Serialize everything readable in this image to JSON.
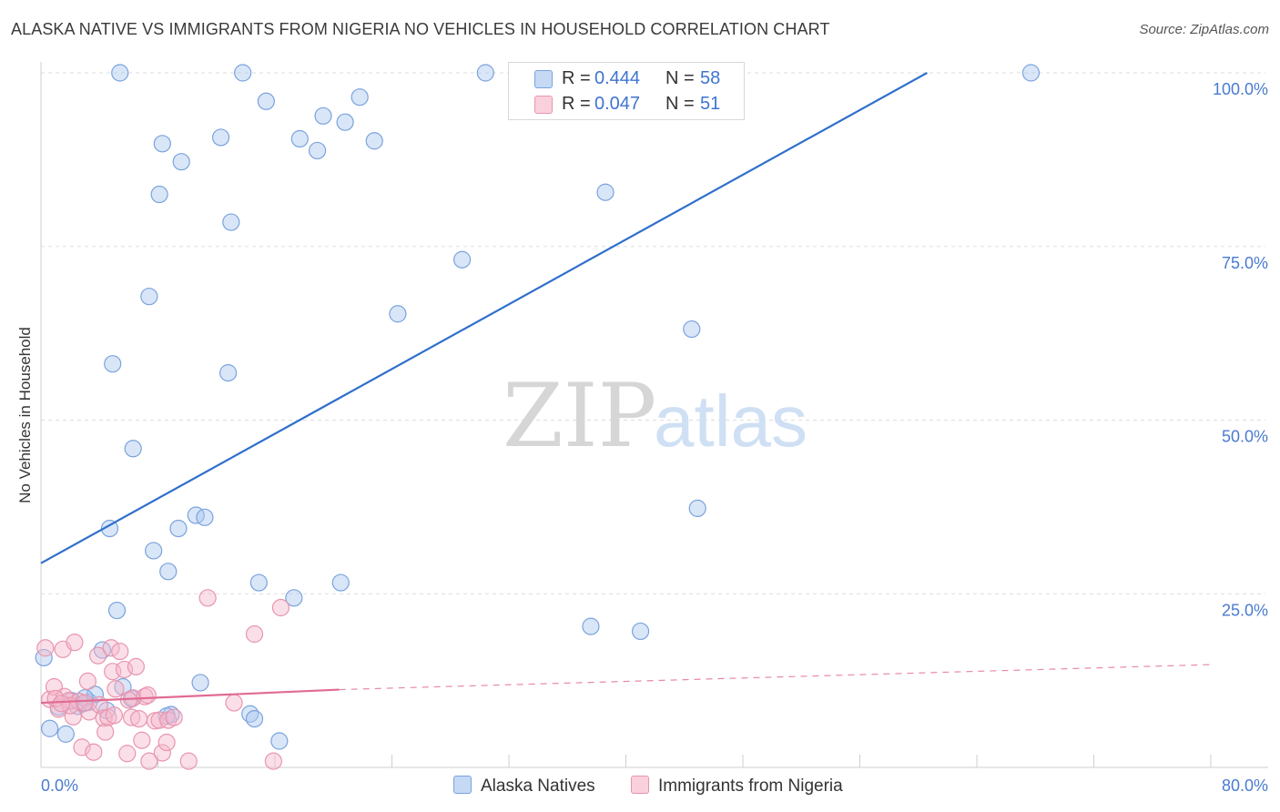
{
  "title": "ALASKA NATIVE VS IMMIGRANTS FROM NIGERIA NO VEHICLES IN HOUSEHOLD CORRELATION CHART",
  "source": "Source: ZipAtlas.com",
  "watermark": {
    "zip": "ZIP",
    "atlas": "atlas"
  },
  "legend": [
    {
      "name": "Alaska Natives",
      "r_label": "R =",
      "r": "0.444",
      "n_label": "N =",
      "n": "58",
      "color": "#aac8f0",
      "edge": "#7aa3dd"
    },
    {
      "name": "Immigrants from Nigeria",
      "r_label": "R =",
      "r": "0.047",
      "n_label": "N =",
      "n": "51",
      "color": "#f7b9cc",
      "edge": "#e895ae"
    }
  ],
  "chart_data": {
    "type": "scatter",
    "title": "ALASKA NATIVE VS IMMIGRANTS FROM NIGERIA NO VEHICLES IN HOUSEHOLD CORRELATION CHART",
    "xlabel": "",
    "ylabel": "No Vehicles in Household",
    "xlim": [
      0,
      80
    ],
    "ylim": [
      0,
      100
    ],
    "x_tick_labels": [
      "0.0%",
      "80.0%"
    ],
    "y_ticks": [
      100,
      75,
      50,
      25
    ],
    "y_tick_labels": [
      "100.0%",
      "75.0%",
      "50.0%",
      "25.0%"
    ],
    "grid": true,
    "legend_position": "top-center",
    "series": [
      {
        "name": "Alaska Natives",
        "color": "#aac8f0",
        "edge": "#7aa3dd",
        "trend": {
          "x": [
            0,
            60.6
          ],
          "y": [
            29.4,
            100
          ],
          "color": "#2f6fcc",
          "dashed_to": null
        },
        "points": [
          [
            0.2,
            15.8
          ],
          [
            0.6,
            5.6
          ],
          [
            1.7,
            4.8
          ],
          [
            2.5,
            8.8
          ],
          [
            2.9,
            9.2
          ],
          [
            3.3,
            9.4
          ],
          [
            3.7,
            10.5
          ],
          [
            4.2,
            16.9
          ],
          [
            4.7,
            34.4
          ],
          [
            4.9,
            58.1
          ],
          [
            5.2,
            22.6
          ],
          [
            5.6,
            11.6
          ],
          [
            6.2,
            9.9
          ],
          [
            6.3,
            45.9
          ],
          [
            7.4,
            67.8
          ],
          [
            7.7,
            31.2
          ],
          [
            8.1,
            82.5
          ],
          [
            8.3,
            89.8
          ],
          [
            8.7,
            28.2
          ],
          [
            8.9,
            7.6
          ],
          [
            9.4,
            34.4
          ],
          [
            9.6,
            87.2
          ],
          [
            10.6,
            36.3
          ],
          [
            10.9,
            12.2
          ],
          [
            11.2,
            36.0
          ],
          [
            12.3,
            90.7
          ],
          [
            12.8,
            56.8
          ],
          [
            13.0,
            78.5
          ],
          [
            13.8,
            100.0
          ],
          [
            14.3,
            7.7
          ],
          [
            14.6,
            7.0
          ],
          [
            14.9,
            26.6
          ],
          [
            15.4,
            95.9
          ],
          [
            16.3,
            3.8
          ],
          [
            17.3,
            24.4
          ],
          [
            17.7,
            90.5
          ],
          [
            18.9,
            88.8
          ],
          [
            19.3,
            93.8
          ],
          [
            20.5,
            26.6
          ],
          [
            20.8,
            92.9
          ],
          [
            21.8,
            96.5
          ],
          [
            22.8,
            90.2
          ],
          [
            5.4,
            100.0
          ],
          [
            24.4,
            65.3
          ],
          [
            28.8,
            73.1
          ],
          [
            30.4,
            100.0
          ],
          [
            32.8,
            100.0
          ],
          [
            37.6,
            20.3
          ],
          [
            38.6,
            82.8
          ],
          [
            41.0,
            19.6
          ],
          [
            44.5,
            63.1
          ],
          [
            44.9,
            37.3
          ],
          [
            67.7,
            100.0
          ],
          [
            1.2,
            8.7
          ],
          [
            2.1,
            9.6
          ],
          [
            3.0,
            10.0
          ],
          [
            4.5,
            8.2
          ],
          [
            8.6,
            7.4
          ]
        ]
      },
      {
        "name": "Immigrants from Nigeria",
        "color": "#f7b9cc",
        "edge": "#e895ae",
        "trend": {
          "x": [
            0,
            20.4
          ],
          "y": [
            9.3,
            11.2
          ],
          "color": "#e06b93",
          "dashed_to": [
            80,
            14.8
          ]
        },
        "points": [
          [
            0.3,
            17.2
          ],
          [
            0.6,
            9.8
          ],
          [
            0.9,
            11.6
          ],
          [
            1.2,
            8.4
          ],
          [
            1.5,
            17.0
          ],
          [
            1.6,
            10.2
          ],
          [
            1.9,
            9.6
          ],
          [
            2.2,
            7.3
          ],
          [
            2.3,
            18.0
          ],
          [
            2.6,
            9.5
          ],
          [
            2.8,
            2.9
          ],
          [
            3.2,
            12.4
          ],
          [
            3.3,
            8.0
          ],
          [
            3.6,
            2.2
          ],
          [
            3.9,
            16.1
          ],
          [
            4.0,
            9.0
          ],
          [
            4.3,
            7.1
          ],
          [
            4.4,
            5.1
          ],
          [
            4.6,
            7.2
          ],
          [
            4.8,
            17.2
          ],
          [
            4.9,
            13.8
          ],
          [
            5.1,
            11.3
          ],
          [
            5.4,
            16.7
          ],
          [
            5.7,
            14.1
          ],
          [
            5.9,
            2.0
          ],
          [
            6.2,
            7.2
          ],
          [
            6.3,
            10.0
          ],
          [
            6.5,
            14.5
          ],
          [
            6.7,
            7.0
          ],
          [
            6.9,
            3.9
          ],
          [
            7.1,
            10.2
          ],
          [
            7.3,
            10.4
          ],
          [
            7.4,
            0.9
          ],
          [
            7.8,
            6.7
          ],
          [
            8.1,
            6.8
          ],
          [
            8.3,
            2.1
          ],
          [
            8.6,
            3.6
          ],
          [
            8.7,
            6.8
          ],
          [
            9.1,
            7.2
          ],
          [
            10.1,
            0.9
          ],
          [
            11.4,
            24.4
          ],
          [
            13.2,
            9.3
          ],
          [
            14.6,
            19.2
          ],
          [
            15.9,
            0.9
          ],
          [
            16.4,
            23.0
          ],
          [
            1.0,
            9.9
          ],
          [
            2.0,
            8.9
          ],
          [
            3.0,
            9.3
          ],
          [
            5.0,
            7.5
          ],
          [
            6.0,
            9.7
          ],
          [
            1.4,
            9.2
          ]
        ]
      }
    ]
  }
}
